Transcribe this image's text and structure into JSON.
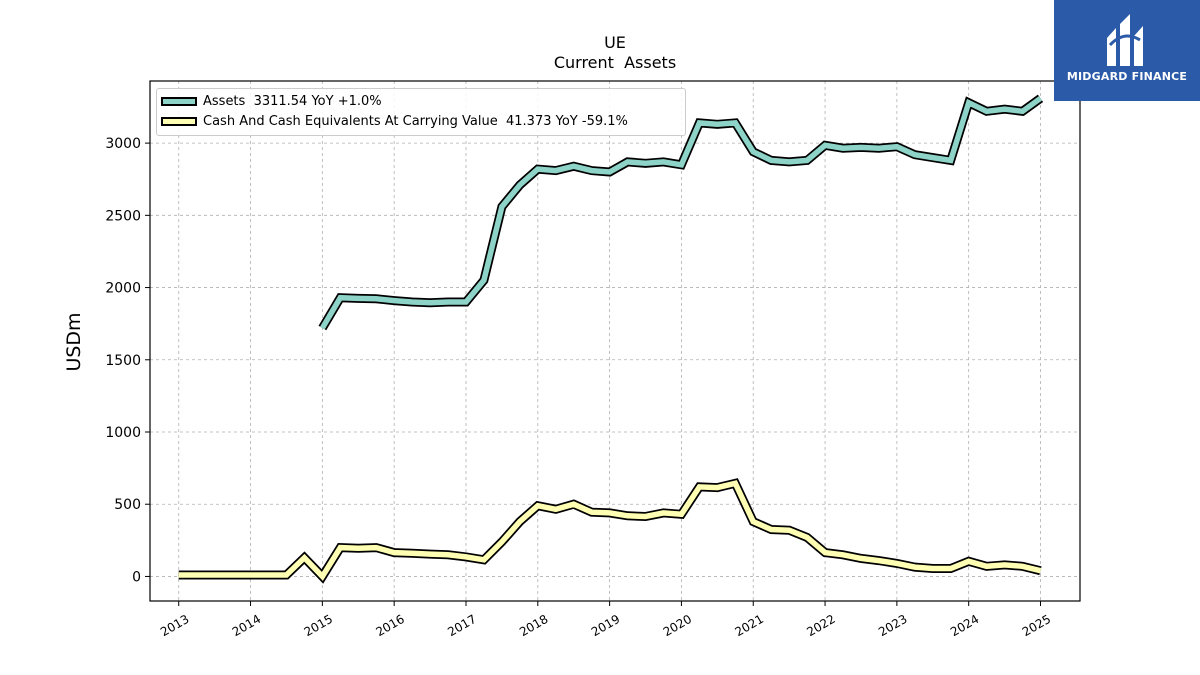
{
  "brand": {
    "name": "MIDGARD FINANCE",
    "bg": "#2b5aa8"
  },
  "chart_data": {
    "type": "line",
    "title": "UE",
    "subtitle": "Current  Assets",
    "ylabel": "USDm",
    "xlabel": "",
    "ylim": [
      -170,
      3430
    ],
    "xlim": [
      2012.6,
      2025.55
    ],
    "yticks": [
      0,
      500,
      1000,
      1500,
      2000,
      2500,
      3000
    ],
    "xticks": [
      2013,
      2014,
      2015,
      2016,
      2017,
      2018,
      2019,
      2020,
      2021,
      2022,
      2023,
      2024,
      2025
    ],
    "grid": true,
    "legend_position": "top-left",
    "series": [
      {
        "name": "Assets",
        "legend_label": "Assets  3311.54 YoY +1.0%",
        "color": "#8dd3c7",
        "x": [
          2015.0,
          2015.25,
          2015.5,
          2015.75,
          2016.0,
          2016.25,
          2016.5,
          2016.75,
          2017.0,
          2017.25,
          2017.5,
          2017.75,
          2018.0,
          2018.25,
          2018.5,
          2018.75,
          2019.0,
          2019.25,
          2019.5,
          2019.75,
          2020.0,
          2020.25,
          2020.5,
          2020.75,
          2021.0,
          2021.25,
          2021.5,
          2021.75,
          2022.0,
          2022.25,
          2022.5,
          2022.75,
          2023.0,
          2023.25,
          2023.5,
          2023.75,
          2024.0,
          2024.25,
          2024.5,
          2024.75,
          2025.0
        ],
        "y": [
          1720,
          1930,
          1925,
          1922,
          1910,
          1900,
          1895,
          1900,
          1900,
          2050,
          2560,
          2710,
          2820,
          2810,
          2840,
          2810,
          2800,
          2870,
          2860,
          2870,
          2850,
          3140,
          3130,
          3140,
          2940,
          2880,
          2870,
          2880,
          2985,
          2965,
          2970,
          2965,
          2975,
          2920,
          2900,
          2880,
          3280,
          3220,
          3235,
          3220,
          3310
        ]
      },
      {
        "name": "Cash And Cash Equivalents At Carrying Value",
        "legend_label": "Cash And Cash Equivalents At Carrying Value  41.373 YoY -59.1%",
        "color": "#ffffb3",
        "x": [
          2013.0,
          2013.25,
          2013.5,
          2013.75,
          2014.0,
          2014.25,
          2014.5,
          2014.75,
          2015.0,
          2015.25,
          2015.5,
          2015.75,
          2016.0,
          2016.25,
          2016.5,
          2016.75,
          2017.0,
          2017.25,
          2017.5,
          2017.75,
          2018.0,
          2018.25,
          2018.5,
          2018.75,
          2019.0,
          2019.25,
          2019.5,
          2019.75,
          2020.0,
          2020.25,
          2020.5,
          2020.75,
          2021.0,
          2021.25,
          2021.5,
          2021.75,
          2022.0,
          2022.25,
          2022.5,
          2022.75,
          2023.0,
          2023.25,
          2023.5,
          2023.75,
          2024.0,
          2024.25,
          2024.5,
          2024.75,
          2025.0
        ],
        "y": [
          10,
          10,
          10,
          10,
          10,
          10,
          10,
          130,
          0,
          200,
          195,
          200,
          165,
          160,
          155,
          150,
          135,
          115,
          240,
          380,
          490,
          465,
          500,
          445,
          440,
          420,
          415,
          440,
          430,
          620,
          615,
          645,
          380,
          325,
          320,
          270,
          165,
          150,
          125,
          110,
          90,
          65,
          55,
          55,
          105,
          70,
          80,
          70,
          40
        ]
      }
    ]
  }
}
